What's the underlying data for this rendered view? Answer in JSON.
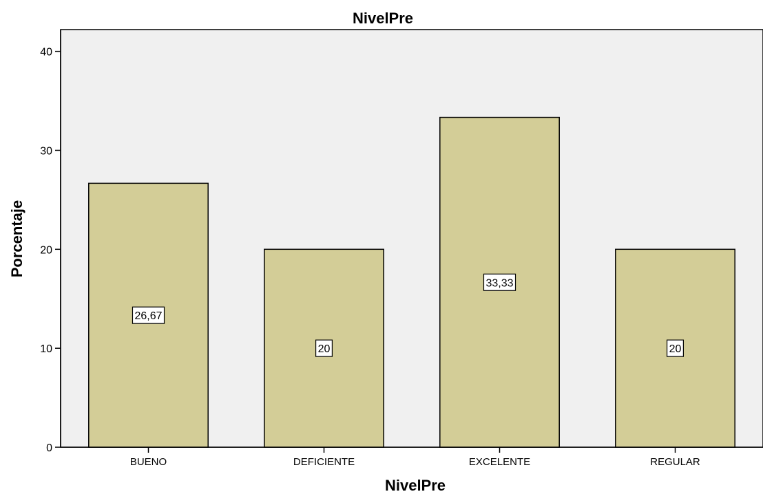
{
  "chart_data": {
    "type": "bar",
    "title": "NivelPre",
    "xlabel": "NivelPre",
    "ylabel": "Porcentaje",
    "categories": [
      "BUENO",
      "DEFICIENTE",
      "EXCELENTE",
      "REGULAR"
    ],
    "values": [
      26.67,
      20,
      33.33,
      20
    ],
    "value_labels": [
      "26,67",
      "20",
      "33,33",
      "20"
    ],
    "yticks": [
      "0",
      "10",
      "20",
      "30",
      "40"
    ],
    "ylim": [
      0,
      42.2
    ],
    "grid": false,
    "legend": "none",
    "colors": {
      "bar_fill": "#d3cd97",
      "bar_stroke": "#000000",
      "plot_bg": "#f0f0f0",
      "label_bg": "#ffffff"
    }
  }
}
